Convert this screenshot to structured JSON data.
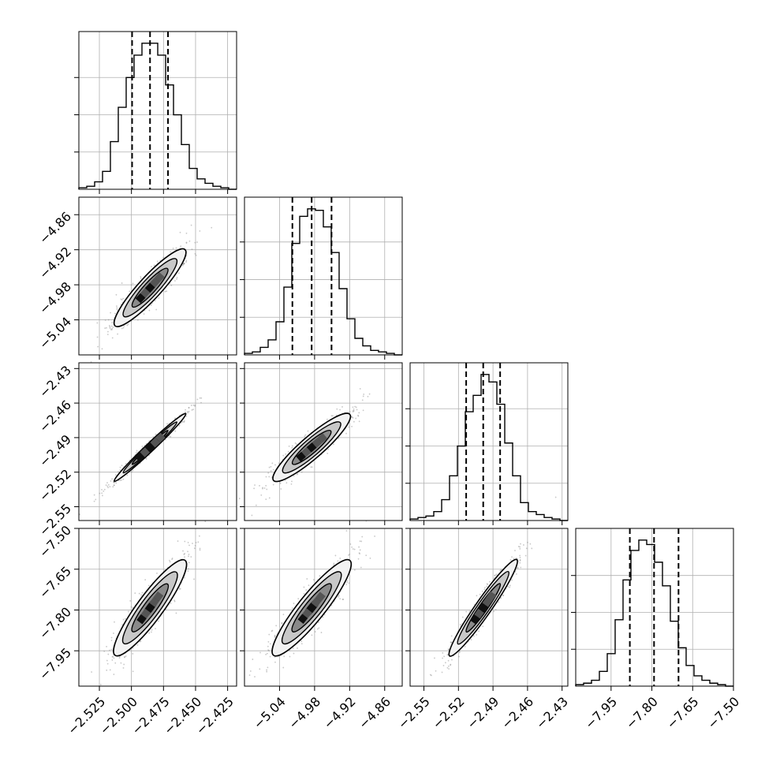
{
  "chart_data": {
    "type": "corner",
    "title": "",
    "parameters": [
      {
        "ticks": [
          -2.525,
          -2.5,
          -2.475,
          -2.45,
          -2.425
        ],
        "tick_labels": [
          "−2.525",
          "−2.500",
          "−2.475",
          "−2.450",
          "−2.425"
        ],
        "range": [
          -2.541,
          -2.418
        ],
        "quantiles": [
          -2.4995,
          -2.4855,
          -2.4715
        ],
        "hist_counts": [
          1,
          2,
          5,
          12,
          32,
          55,
          75,
          90,
          98,
          98,
          90,
          70,
          50,
          30,
          14,
          7,
          4,
          2,
          1,
          0
        ]
      },
      {
        "ticks": [
          -5.04,
          -4.98,
          -4.92,
          -4.86
        ],
        "tick_labels": [
          "−5.04",
          "−4.98",
          "−4.92",
          "−4.86"
        ],
        "range": [
          -5.1,
          -4.83
        ],
        "quantiles": [
          -5.018,
          -4.985,
          -4.951
        ],
        "hist_counts": [
          1,
          2,
          5,
          10,
          22,
          45,
          74,
          92,
          97,
          96,
          85,
          68,
          44,
          24,
          11,
          6,
          3,
          2,
          1,
          0
        ]
      },
      {
        "ticks": [
          -2.55,
          -2.52,
          -2.49,
          -2.46,
          -2.43
        ],
        "tick_labels": [
          "−2.55",
          "−2.52",
          "−2.49",
          "−2.46",
          "−2.43"
        ],
        "range": [
          -2.562,
          -2.425
        ],
        "quantiles": [
          -2.5133,
          -2.4985,
          -2.4838
        ],
        "hist_counts": [
          1,
          2,
          3,
          6,
          14,
          30,
          50,
          73,
          84,
          98,
          93,
          78,
          52,
          30,
          12,
          6,
          4,
          2,
          1,
          0
        ]
      },
      {
        "ticks": [
          -7.95,
          -7.8,
          -7.65,
          -7.5
        ],
        "tick_labels": [
          "−7.95",
          "−7.80",
          "−7.65",
          "−7.50"
        ],
        "range": [
          -8.08,
          -7.5
        ],
        "quantiles": [
          -7.881,
          -7.792,
          -7.702
        ],
        "hist_counts": [
          1,
          2,
          4,
          10,
          22,
          45,
          72,
          92,
          99,
          96,
          84,
          68,
          44,
          26,
          14,
          7,
          4,
          2,
          1,
          0
        ]
      }
    ],
    "contour_levels": [
      "0.5-sigma",
      "1-sigma",
      "1.5-sigma",
      "2-sigma"
    ],
    "grid": true,
    "colors": {
      "line": "#000000",
      "grid": "#b0b0b0",
      "points": "#888888",
      "fill_dark": "#000000",
      "fill_light": "#ffffff"
    }
  }
}
